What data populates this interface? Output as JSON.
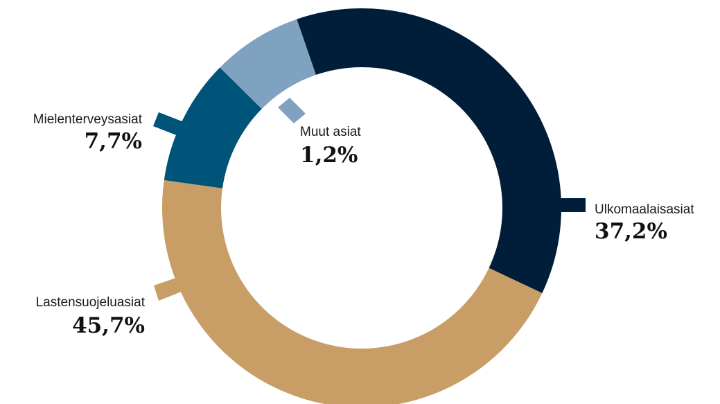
{
  "chart_data": {
    "type": "pie",
    "variant": "donut",
    "title": "",
    "slices": [
      {
        "label": "Ulkomaalaisasiat",
        "value": 37.2,
        "display": "37,2%",
        "color": "#001e39"
      },
      {
        "label": "Lastensuojeluasiat",
        "value": 45.7,
        "display": "45,7%",
        "color": "#c89d66"
      },
      {
        "label": "Mielenterveysasiat",
        "value": 7.7,
        "display": "7,7%",
        "color": "#00547a"
      },
      {
        "label": "Muut asiat",
        "value": 1.2,
        "display": "1,2%",
        "color": "#7fa2c0"
      }
    ],
    "legend": "none"
  }
}
